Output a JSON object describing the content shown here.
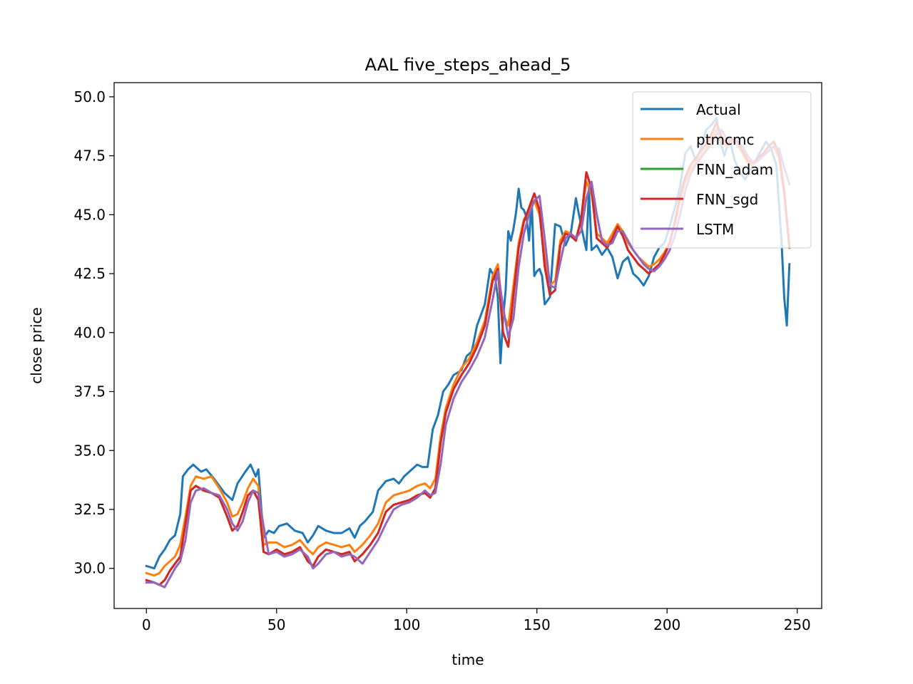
{
  "chart_data": {
    "type": "line",
    "title": "AAL five_steps_ahead_5",
    "xlabel": "time",
    "ylabel": "close price",
    "xlim": [
      -12.4,
      259.4
    ],
    "ylim": [
      28.3,
      50.6
    ],
    "xticks": [
      0,
      50,
      100,
      150,
      200,
      250
    ],
    "yticks": [
      30.0,
      32.5,
      35.0,
      37.5,
      40.0,
      42.5,
      45.0,
      47.5,
      50.0
    ],
    "xtick_labels": [
      "0",
      "50",
      "100",
      "150",
      "200",
      "250"
    ],
    "ytick_labels": [
      "30.0",
      "32.5",
      "35.0",
      "37.5",
      "40.0",
      "42.5",
      "45.0",
      "47.5",
      "50.0"
    ],
    "grid": false,
    "legend_position": "upper right",
    "series": [
      {
        "name": "Actual",
        "color": "#1f77b4",
        "x": [
          0,
          3,
          5,
          7,
          9,
          11,
          13,
          14,
          16,
          18,
          21,
          23,
          26,
          28,
          30,
          33,
          35,
          38,
          40,
          42,
          43,
          45,
          47,
          49,
          51,
          54,
          57,
          60,
          62,
          64,
          66,
          69,
          72,
          75,
          78,
          80,
          82,
          84,
          87,
          89,
          92,
          95,
          97,
          99,
          102,
          104,
          106,
          108,
          110,
          112,
          114,
          116,
          118,
          121,
          123,
          125,
          127,
          129,
          130,
          132,
          134,
          135,
          136,
          137,
          138,
          139,
          140,
          141,
          142,
          143,
          144,
          145,
          146,
          147,
          148,
          149,
          150,
          151,
          152,
          153,
          155,
          157,
          159,
          161,
          163,
          165,
          166,
          168,
          169,
          170,
          171,
          173,
          175,
          177,
          179,
          181,
          183,
          185,
          187,
          189,
          191,
          193,
          195,
          197,
          199,
          201,
          203,
          205,
          207,
          209,
          211,
          213,
          215,
          217,
          219,
          220,
          222,
          224,
          226,
          228,
          230,
          232,
          234,
          236,
          238,
          240,
          242,
          244,
          245,
          246,
          247
        ],
        "values": [
          30.1,
          30.0,
          30.5,
          30.8,
          31.2,
          31.4,
          32.3,
          33.9,
          34.2,
          34.4,
          34.1,
          34.2,
          33.8,
          33.5,
          33.2,
          32.9,
          33.6,
          34.1,
          34.4,
          33.9,
          34.2,
          31.3,
          31.6,
          31.5,
          31.8,
          31.9,
          31.6,
          31.5,
          31.1,
          31.4,
          31.8,
          31.6,
          31.5,
          31.5,
          31.7,
          31.3,
          31.8,
          32.0,
          32.4,
          33.3,
          33.7,
          33.8,
          33.6,
          33.9,
          34.2,
          34.4,
          34.3,
          34.3,
          35.9,
          36.5,
          37.5,
          37.8,
          38.2,
          38.4,
          39.0,
          39.2,
          40.3,
          40.9,
          41.2,
          42.7,
          42.3,
          41.5,
          38.7,
          40.6,
          41.8,
          44.3,
          43.9,
          44.4,
          45.1,
          46.1,
          45.3,
          45.2,
          44.9,
          43.9,
          45.6,
          42.4,
          42.6,
          42.7,
          42.4,
          41.2,
          41.5,
          44.6,
          44.5,
          43.7,
          44.2,
          45.7,
          45.1,
          44.0,
          43.5,
          46.1,
          43.5,
          43.7,
          43.3,
          43.6,
          43.2,
          42.3,
          43.0,
          43.2,
          42.5,
          42.3,
          42.0,
          42.4,
          43.2,
          43.6,
          43.8,
          44.5,
          45.3,
          46.2,
          47.6,
          47.9,
          47.3,
          47.8,
          48.6,
          48.8,
          49.1,
          48.3,
          47.5,
          48.2,
          47.3,
          46.8,
          46.5,
          46.9,
          47.3,
          47.7,
          48.1,
          47.8,
          47.1,
          43.8,
          41.5,
          40.3,
          42.9
        ]
      },
      {
        "name": "ptmcmc",
        "color": "#ff7f0e",
        "x": [
          0,
          3,
          5,
          7,
          9,
          11,
          13,
          15,
          17,
          19,
          22,
          25,
          28,
          31,
          33,
          35,
          37,
          39,
          41,
          43,
          45,
          47,
          50,
          53,
          56,
          59,
          62,
          64,
          66,
          69,
          72,
          75,
          78,
          80,
          83,
          86,
          89,
          92,
          95,
          98,
          101,
          104,
          107,
          109,
          111,
          113,
          115,
          118,
          121,
          124,
          127,
          130,
          133,
          135,
          137,
          139,
          141,
          143,
          145,
          147,
          149,
          151,
          153,
          155,
          157,
          159,
          161,
          163,
          165,
          167,
          169,
          171,
          173,
          175,
          177,
          179,
          181,
          183,
          185,
          187,
          189,
          191,
          193,
          195,
          197,
          199,
          201,
          203,
          205,
          207,
          209,
          211,
          213,
          215,
          217,
          219,
          221,
          223,
          225,
          227,
          229,
          231,
          233,
          235,
          237,
          239,
          241,
          243,
          245,
          247
        ],
        "values": [
          29.8,
          29.7,
          29.8,
          30.1,
          30.3,
          30.5,
          31.0,
          32.2,
          33.5,
          33.9,
          33.8,
          33.9,
          33.4,
          32.8,
          32.2,
          32.3,
          32.8,
          33.4,
          33.8,
          33.5,
          31.0,
          31.1,
          31.1,
          30.9,
          31.0,
          31.2,
          30.8,
          30.6,
          30.9,
          31.1,
          31.0,
          30.9,
          31.0,
          30.7,
          31.0,
          31.4,
          31.9,
          32.8,
          33.1,
          33.2,
          33.3,
          33.5,
          33.6,
          33.4,
          33.8,
          35.6,
          36.8,
          37.8,
          38.5,
          38.9,
          39.6,
          40.5,
          42.4,
          42.9,
          40.8,
          40.3,
          42.0,
          43.8,
          44.8,
          45.1,
          45.6,
          45.0,
          43.2,
          42.0,
          42.2,
          43.9,
          44.3,
          44.2,
          44.0,
          44.8,
          46.4,
          45.9,
          44.2,
          44.0,
          43.8,
          44.2,
          44.6,
          44.3,
          43.8,
          43.5,
          43.2,
          43.0,
          42.8,
          42.9,
          43.1,
          43.4,
          43.8,
          44.6,
          45.6,
          46.4,
          46.9,
          47.2,
          47.5,
          47.8,
          48.2,
          48.6,
          48.1,
          47.9,
          48.1,
          48.0,
          47.6,
          47.2,
          47.1,
          47.3,
          47.5,
          47.7,
          47.9,
          47.4,
          45.9,
          43.7
        ]
      },
      {
        "name": "FNN_adam",
        "color": "#2ca02c",
        "x": [
          0,
          3,
          5,
          7,
          9,
          11,
          13,
          15,
          17,
          19,
          22,
          25,
          28,
          31,
          33,
          35,
          37,
          39,
          41,
          43,
          45,
          47,
          50,
          53,
          56,
          59,
          62,
          64,
          66,
          69,
          72,
          75,
          78,
          80,
          83,
          86,
          89,
          92,
          95,
          98,
          101,
          104,
          107,
          109,
          111,
          113,
          115,
          118,
          121,
          124,
          127,
          130,
          133,
          135,
          137,
          139,
          141,
          143,
          145,
          147,
          149,
          151,
          153,
          155,
          157,
          159,
          161,
          163,
          165,
          167,
          169,
          171,
          173,
          175,
          177,
          179,
          181,
          183,
          185,
          187,
          189,
          191,
          193,
          195,
          197,
          199,
          201,
          203,
          205,
          207,
          209,
          211,
          213,
          215,
          217,
          219,
          221,
          223,
          225,
          227,
          229,
          231,
          233,
          235,
          237,
          239,
          241,
          243,
          245,
          247
        ],
        "values": [
          29.5,
          29.4,
          29.3,
          29.5,
          29.9,
          30.2,
          30.5,
          31.9,
          33.3,
          33.5,
          33.3,
          33.2,
          33.0,
          32.2,
          31.6,
          31.8,
          32.4,
          33.1,
          33.3,
          32.9,
          30.7,
          30.6,
          30.8,
          30.6,
          30.7,
          30.9,
          30.3,
          30.1,
          30.5,
          30.8,
          30.7,
          30.6,
          30.7,
          30.3,
          30.6,
          31.0,
          31.5,
          32.4,
          32.7,
          32.8,
          32.9,
          33.1,
          33.2,
          33.0,
          33.4,
          35.3,
          36.6,
          37.6,
          38.2,
          38.7,
          39.4,
          40.3,
          42.2,
          42.7,
          40.0,
          39.4,
          41.6,
          43.6,
          44.7,
          45.3,
          45.9,
          45.2,
          42.8,
          41.6,
          41.8,
          43.7,
          44.2,
          44.1,
          43.9,
          44.8,
          46.8,
          46.1,
          44.0,
          43.8,
          43.6,
          44.0,
          44.5,
          44.1,
          43.5,
          43.2,
          42.9,
          42.7,
          42.5,
          42.7,
          42.9,
          43.3,
          43.8,
          44.7,
          45.8,
          46.6,
          47.1,
          47.4,
          47.7,
          48.0,
          48.4,
          48.9,
          48.3,
          48.0,
          48.2,
          48.1,
          47.7,
          47.3,
          47.2,
          47.4,
          47.6,
          47.9,
          48.1,
          47.6,
          46.0,
          43.6
        ]
      },
      {
        "name": "FNN_sgd",
        "color": "#d62728",
        "x": [
          0,
          3,
          5,
          7,
          9,
          11,
          13,
          15,
          17,
          19,
          22,
          25,
          28,
          31,
          33,
          35,
          37,
          39,
          41,
          43,
          45,
          47,
          50,
          53,
          56,
          59,
          62,
          64,
          66,
          69,
          72,
          75,
          78,
          80,
          83,
          86,
          89,
          92,
          95,
          98,
          101,
          104,
          107,
          109,
          111,
          113,
          115,
          118,
          121,
          124,
          127,
          130,
          133,
          135,
          137,
          139,
          141,
          143,
          145,
          147,
          149,
          151,
          153,
          155,
          157,
          159,
          161,
          163,
          165,
          167,
          169,
          171,
          173,
          175,
          177,
          179,
          181,
          183,
          185,
          187,
          189,
          191,
          193,
          195,
          197,
          199,
          201,
          203,
          205,
          207,
          209,
          211,
          213,
          215,
          217,
          219,
          221,
          223,
          225,
          227,
          229,
          231,
          233,
          235,
          237,
          239,
          241,
          243,
          245,
          247
        ],
        "values": [
          29.5,
          29.4,
          29.3,
          29.5,
          29.9,
          30.2,
          30.5,
          31.9,
          33.3,
          33.5,
          33.3,
          33.2,
          33.0,
          32.2,
          31.6,
          31.8,
          32.4,
          33.1,
          33.3,
          32.9,
          30.7,
          30.6,
          30.8,
          30.6,
          30.7,
          30.9,
          30.3,
          30.1,
          30.5,
          30.8,
          30.7,
          30.6,
          30.7,
          30.3,
          30.6,
          31.0,
          31.5,
          32.4,
          32.7,
          32.8,
          32.9,
          33.1,
          33.2,
          33.0,
          33.4,
          35.3,
          36.6,
          37.6,
          38.2,
          38.7,
          39.4,
          40.3,
          42.2,
          42.7,
          40.0,
          39.4,
          41.6,
          43.6,
          44.7,
          45.3,
          45.9,
          45.2,
          42.8,
          41.6,
          41.8,
          43.7,
          44.2,
          44.1,
          43.9,
          44.8,
          46.8,
          46.1,
          44.0,
          43.8,
          43.6,
          44.0,
          44.5,
          44.1,
          43.5,
          43.2,
          42.9,
          42.7,
          42.5,
          42.7,
          42.9,
          43.3,
          43.8,
          44.7,
          45.8,
          46.6,
          47.1,
          47.4,
          47.7,
          48.0,
          48.4,
          48.9,
          48.3,
          48.0,
          48.2,
          48.1,
          47.7,
          47.3,
          47.2,
          47.4,
          47.6,
          47.9,
          48.1,
          47.6,
          46.0,
          43.6
        ]
      },
      {
        "name": "LSTM",
        "color": "#9467bd",
        "x": [
          0,
          3,
          5,
          7,
          9,
          11,
          13,
          15,
          17,
          19,
          22,
          25,
          28,
          31,
          33,
          35,
          37,
          39,
          41,
          43,
          45,
          47,
          50,
          53,
          56,
          59,
          62,
          64,
          66,
          69,
          72,
          75,
          78,
          80,
          83,
          86,
          89,
          92,
          95,
          98,
          101,
          104,
          107,
          109,
          111,
          113,
          115,
          118,
          121,
          124,
          127,
          130,
          133,
          135,
          137,
          139,
          141,
          143,
          145,
          147,
          149,
          151,
          153,
          155,
          157,
          159,
          161,
          163,
          165,
          167,
          169,
          171,
          173,
          175,
          177,
          179,
          181,
          183,
          185,
          187,
          189,
          191,
          193,
          195,
          197,
          199,
          201,
          203,
          205,
          207,
          209,
          211,
          213,
          215,
          217,
          219,
          221,
          223,
          225,
          227,
          229,
          231,
          233,
          235,
          237,
          239,
          241,
          243,
          245,
          247
        ],
        "values": [
          29.4,
          29.4,
          29.3,
          29.2,
          29.6,
          30.0,
          30.3,
          31.2,
          32.8,
          33.3,
          33.4,
          33.2,
          33.1,
          32.5,
          31.9,
          31.6,
          32.0,
          32.8,
          33.3,
          33.2,
          31.8,
          30.6,
          30.7,
          30.5,
          30.6,
          30.8,
          30.5,
          30.0,
          30.2,
          30.6,
          30.7,
          30.5,
          30.6,
          30.5,
          30.2,
          30.7,
          31.2,
          31.9,
          32.5,
          32.7,
          32.8,
          33.0,
          33.3,
          33.1,
          33.2,
          34.4,
          36.1,
          37.2,
          37.9,
          38.4,
          39.0,
          39.8,
          41.4,
          42.6,
          41.1,
          39.8,
          40.6,
          42.8,
          44.2,
          45.0,
          45.6,
          45.8,
          44.0,
          42.0,
          41.9,
          43.0,
          44.0,
          44.2,
          44.0,
          44.3,
          45.7,
          46.4,
          45.0,
          43.9,
          43.7,
          43.8,
          44.3,
          44.3,
          43.9,
          43.5,
          43.2,
          42.9,
          42.7,
          42.6,
          42.8,
          43.1,
          43.5,
          44.1,
          45.0,
          46.0,
          46.7,
          47.1,
          47.4,
          47.7,
          48.0,
          48.4,
          48.6,
          48.2,
          48.1,
          48.1,
          47.9,
          47.5,
          47.2,
          47.3,
          47.5,
          47.7,
          47.9,
          47.8,
          47.0,
          46.3
        ]
      }
    ]
  }
}
